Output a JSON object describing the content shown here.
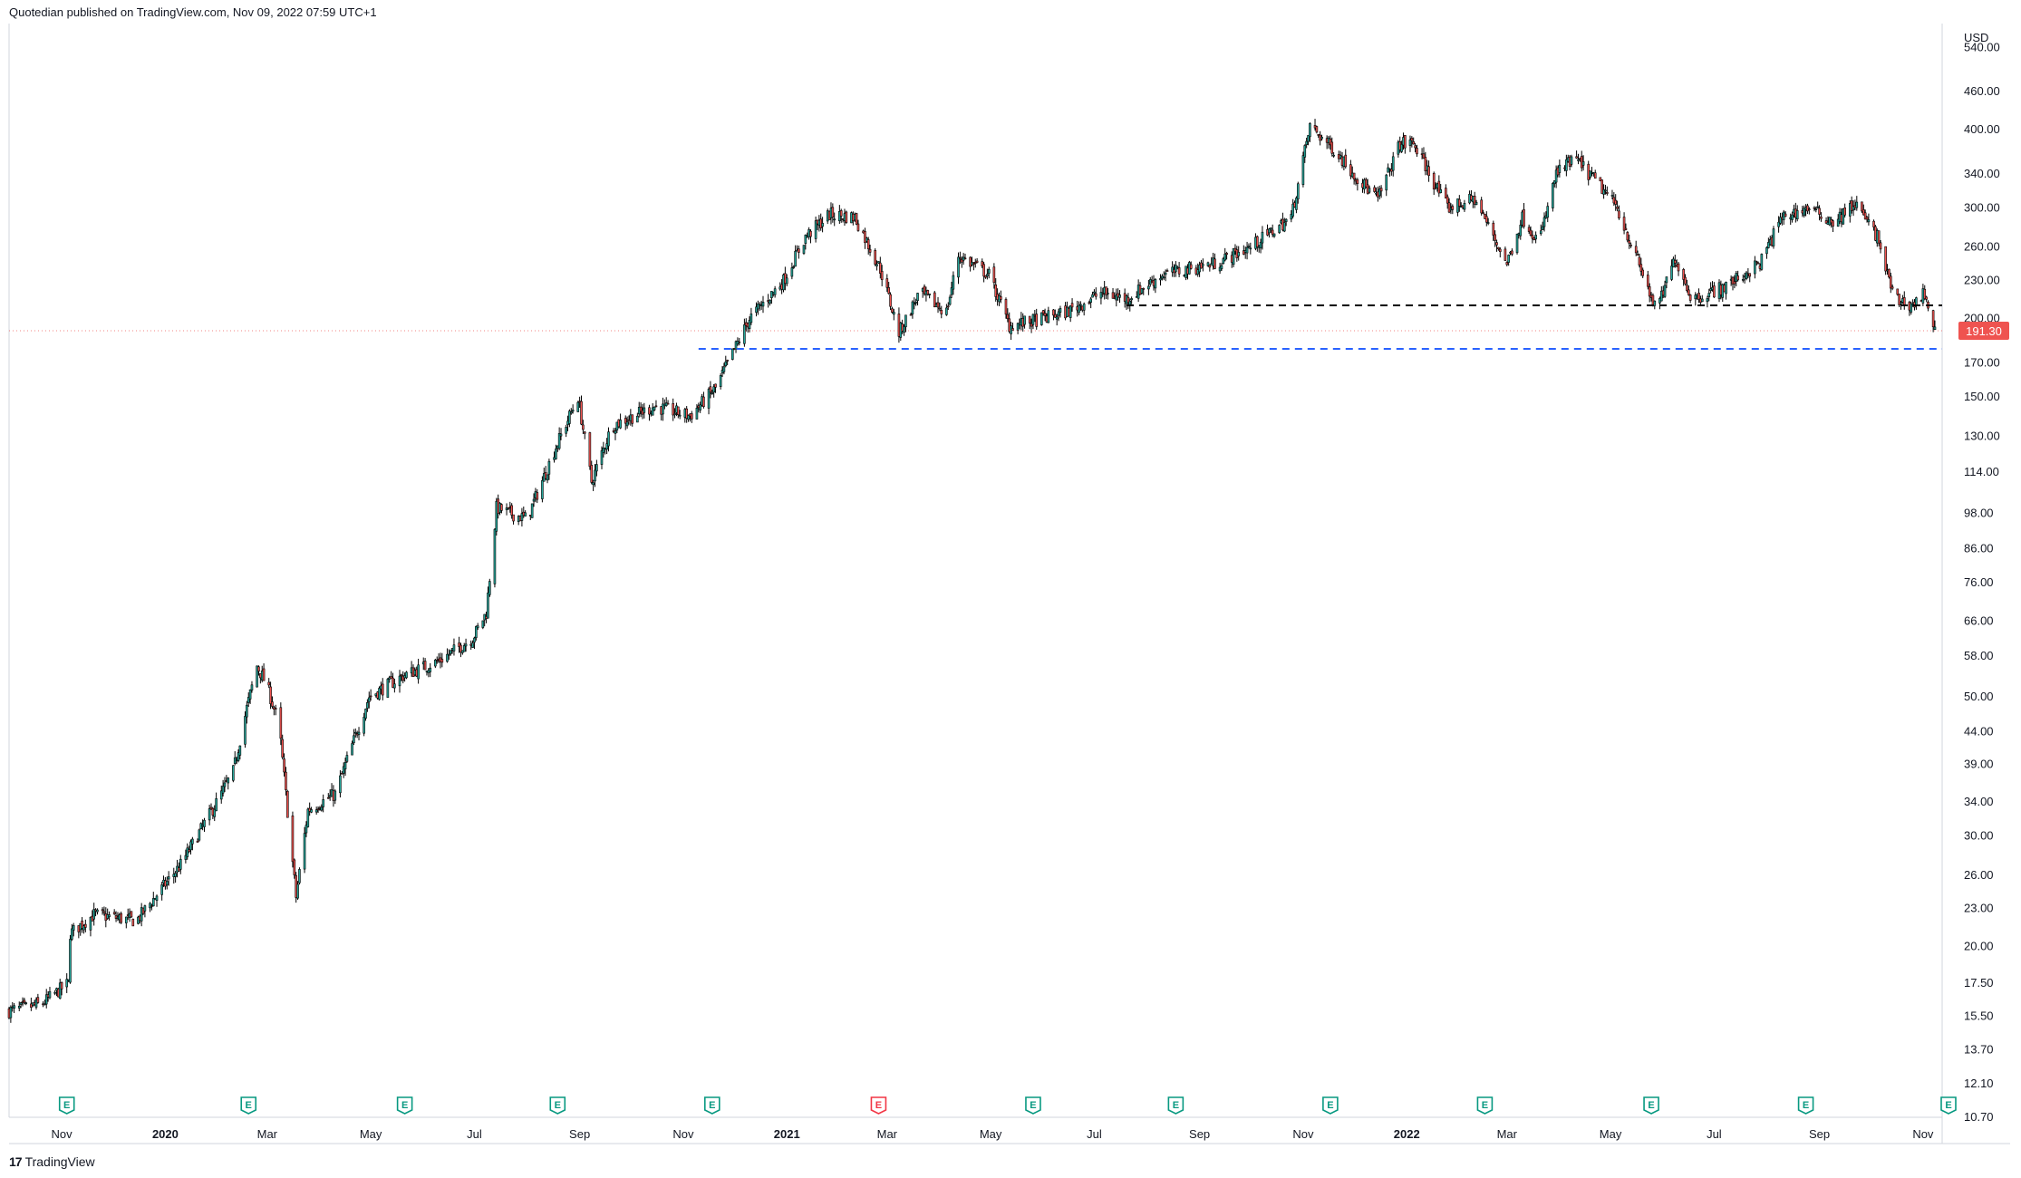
{
  "header": {
    "published_by": "Quotedian published on TradingView.com, Nov 09, 2022 07:59 UTC+1"
  },
  "footer": {
    "brand": "TradingView",
    "brand_mark": "17"
  },
  "colors": {
    "up": "#26a69a",
    "down": "#ef5350",
    "wick": "#000000",
    "support_black": "#000000",
    "support_blue": "#2962ff",
    "last_price_bg": "#ef5350",
    "earnings_green": "#089981",
    "earnings_red": "#f23645"
  },
  "chart_data": {
    "type": "candlestick",
    "scale": "log",
    "currency": "USD",
    "ylim": [
      10.7,
      590
    ],
    "y_ticks": [
      "540.00",
      "460.00",
      "400.00",
      "340.00",
      "300.00",
      "260.00",
      "230.00",
      "200.00",
      "170.00",
      "150.00",
      "130.00",
      "114.00",
      "98.00",
      "86.00",
      "76.00",
      "66.00",
      "58.00",
      "50.00",
      "44.00",
      "39.00",
      "34.00",
      "30.00",
      "26.00",
      "23.00",
      "20.00",
      "17.50",
      "15.50",
      "13.70",
      "12.10",
      "10.70"
    ],
    "x_ticks": [
      {
        "label": "Nov",
        "t": "2019-11-01",
        "bold": false
      },
      {
        "label": "2020",
        "t": "2020-01-01",
        "bold": true
      },
      {
        "label": "Mar",
        "t": "2020-03-01",
        "bold": false
      },
      {
        "label": "May",
        "t": "2020-05-01",
        "bold": false
      },
      {
        "label": "Jul",
        "t": "2020-07-01",
        "bold": false
      },
      {
        "label": "Sep",
        "t": "2020-09-01",
        "bold": false
      },
      {
        "label": "Nov",
        "t": "2020-11-01",
        "bold": false
      },
      {
        "label": "2021",
        "t": "2021-01-01",
        "bold": true
      },
      {
        "label": "Mar",
        "t": "2021-03-01",
        "bold": false
      },
      {
        "label": "May",
        "t": "2021-05-01",
        "bold": false
      },
      {
        "label": "Jul",
        "t": "2021-07-01",
        "bold": false
      },
      {
        "label": "Sep",
        "t": "2021-09-01",
        "bold": false
      },
      {
        "label": "Nov",
        "t": "2021-11-01",
        "bold": false
      },
      {
        "label": "2022",
        "t": "2022-01-01",
        "bold": true
      },
      {
        "label": "Mar",
        "t": "2022-03-01",
        "bold": false
      },
      {
        "label": "May",
        "t": "2022-05-01",
        "bold": false
      },
      {
        "label": "Jul",
        "t": "2022-07-01",
        "bold": false
      },
      {
        "label": "Sep",
        "t": "2022-09-01",
        "bold": false
      },
      {
        "label": "Nov",
        "t": "2022-11-01",
        "bold": false
      }
    ],
    "first_bar": "2019-10-01",
    "last_bar": "2022-11-08",
    "price_path": [
      [
        "2019-10-01",
        15.8
      ],
      [
        "2019-10-20",
        16.2
      ],
      [
        "2019-11-05",
        17.5
      ],
      [
        "2019-11-06",
        21.0
      ],
      [
        "2019-11-20",
        22.5
      ],
      [
        "2019-12-15",
        22.0
      ],
      [
        "2020-01-10",
        27.0
      ],
      [
        "2020-01-30",
        33.5
      ],
      [
        "2020-02-10",
        38.0
      ],
      [
        "2020-02-18",
        48.0
      ],
      [
        "2020-02-24",
        56.0
      ],
      [
        "2020-03-01",
        52.0
      ],
      [
        "2020-03-08",
        45.0
      ],
      [
        "2020-03-18",
        24.0
      ],
      [
        "2020-03-25",
        33.0
      ],
      [
        "2020-04-10",
        35.0
      ],
      [
        "2020-04-30",
        50.0
      ],
      [
        "2020-05-20",
        54.0
      ],
      [
        "2020-06-10",
        57.0
      ],
      [
        "2020-06-30",
        62.0
      ],
      [
        "2020-07-08",
        68.0
      ],
      [
        "2020-07-14",
        100.0
      ],
      [
        "2020-07-22",
        98.0
      ],
      [
        "2020-08-01",
        96.0
      ],
      [
        "2020-08-18",
        125.0
      ],
      [
        "2020-08-31",
        150.0
      ],
      [
        "2020-09-08",
        110.0
      ],
      [
        "2020-09-20",
        135.0
      ],
      [
        "2020-10-15",
        145.0
      ],
      [
        "2020-11-05",
        140.0
      ],
      [
        "2020-11-20",
        155.0
      ],
      [
        "2020-12-10",
        200.0
      ],
      [
        "2020-12-30",
        230.0
      ],
      [
        "2021-01-12",
        270.0
      ],
      [
        "2021-01-26",
        293.0
      ],
      [
        "2021-02-10",
        290.0
      ],
      [
        "2021-02-25",
        240.0
      ],
      [
        "2021-03-08",
        190.0
      ],
      [
        "2021-03-20",
        220.0
      ],
      [
        "2021-04-05",
        205.0
      ],
      [
        "2021-04-12",
        252.0
      ],
      [
        "2021-04-30",
        235.0
      ],
      [
        "2021-05-12",
        195.0
      ],
      [
        "2021-05-25",
        198.0
      ],
      [
        "2021-06-15",
        205.0
      ],
      [
        "2021-07-05",
        220.0
      ],
      [
        "2021-07-20",
        215.0
      ],
      [
        "2021-08-10",
        235.0
      ],
      [
        "2021-09-10",
        245.0
      ],
      [
        "2021-10-01",
        260.0
      ],
      [
        "2021-10-25",
        290.0
      ],
      [
        "2021-11-05",
        405.0
      ],
      [
        "2021-11-20",
        370.0
      ],
      [
        "2021-12-05",
        330.0
      ],
      [
        "2021-12-15",
        310.0
      ],
      [
        "2021-12-28",
        380.0
      ],
      [
        "2022-01-05",
        380.0
      ],
      [
        "2022-01-25",
        300.0
      ],
      [
        "2022-02-10",
        310.0
      ],
      [
        "2022-03-01",
        245.0
      ],
      [
        "2022-03-10",
        290.0
      ],
      [
        "2022-03-20",
        265.0
      ],
      [
        "2022-03-30",
        340.0
      ],
      [
        "2022-04-10",
        360.0
      ],
      [
        "2022-04-25",
        325.0
      ],
      [
        "2022-05-05",
        300.0
      ],
      [
        "2022-05-20",
        235.0
      ],
      [
        "2022-05-28",
        205.0
      ],
      [
        "2022-06-08",
        250.0
      ],
      [
        "2022-06-18",
        215.0
      ],
      [
        "2022-07-08",
        225.0
      ],
      [
        "2022-07-28",
        245.0
      ],
      [
        "2022-08-10",
        290.0
      ],
      [
        "2022-08-25",
        300.0
      ],
      [
        "2022-09-10",
        285.0
      ],
      [
        "2022-09-22",
        305.0
      ],
      [
        "2022-10-05",
        270.0
      ],
      [
        "2022-10-15",
        215.0
      ],
      [
        "2022-10-26",
        210.0
      ],
      [
        "2022-11-02",
        220.0
      ],
      [
        "2022-11-08",
        191.3
      ]
    ],
    "support_lines": [
      {
        "price": 210.0,
        "from": "2021-07-20",
        "to": "2022-11-08",
        "color": "#000000",
        "style": "dashed"
      },
      {
        "price": 179.0,
        "from": "2020-11-10",
        "to": "2022-11-08",
        "color": "#2962ff",
        "style": "dashed"
      }
    ],
    "last_price": "191.30",
    "last_price_value": 191.3,
    "earnings_markers": [
      {
        "t": "2019-11-04",
        "label": "E",
        "color": "#089981"
      },
      {
        "t": "2020-02-19",
        "label": "E",
        "color": "#089981"
      },
      {
        "t": "2020-05-21",
        "label": "E",
        "color": "#089981"
      },
      {
        "t": "2020-08-19",
        "label": "E",
        "color": "#089981"
      },
      {
        "t": "2020-11-18",
        "label": "E",
        "color": "#089981"
      },
      {
        "t": "2021-02-24",
        "label": "E",
        "color": "#f23645"
      },
      {
        "t": "2021-05-26",
        "label": "E",
        "color": "#089981"
      },
      {
        "t": "2021-08-18",
        "label": "E",
        "color": "#089981"
      },
      {
        "t": "2021-11-17",
        "label": "E",
        "color": "#089981"
      },
      {
        "t": "2022-02-16",
        "label": "E",
        "color": "#089981"
      },
      {
        "t": "2022-05-25",
        "label": "E",
        "color": "#089981"
      },
      {
        "t": "2022-08-24",
        "label": "E",
        "color": "#089981"
      },
      {
        "t": "2022-11-16",
        "label": "E",
        "color": "#089981"
      }
    ]
  }
}
